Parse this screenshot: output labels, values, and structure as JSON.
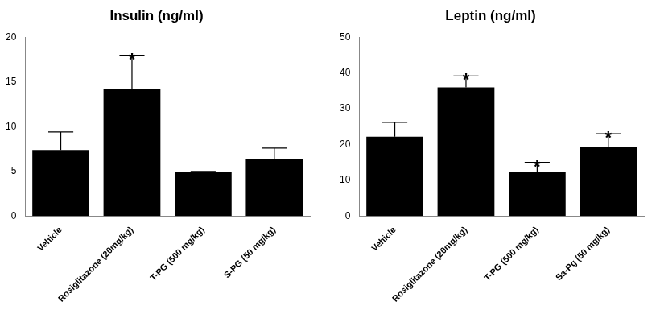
{
  "chart_data": [
    {
      "type": "bar",
      "title": "Insulin (ng/ml)",
      "categories": [
        "Vehicle",
        "Rosiglitazone (20mg/kg)",
        "T-PG (500 mg/kg)",
        "S-PG (50 mg/kg)"
      ],
      "values": [
        7.4,
        14.2,
        4.9,
        6.4
      ],
      "errors": [
        2.0,
        3.8,
        0.1,
        1.2
      ],
      "significance": [
        null,
        "*",
        null,
        null
      ],
      "color": "#000000",
      "ylim": [
        0,
        20
      ],
      "yticks": [
        0,
        5,
        10,
        15,
        20
      ],
      "grid": false
    },
    {
      "type": "bar",
      "title": "Leptin (ng/ml)",
      "categories": [
        "Vehicle",
        "Rosiglitazone (20mg/kg)",
        "T-PG (500 mg/kg)",
        "Sa-Pg (50 mg/kg)"
      ],
      "values": [
        22.2,
        36.0,
        12.3,
        19.3
      ],
      "errors": [
        4.0,
        3.2,
        2.7,
        3.7
      ],
      "significance": [
        null,
        "*",
        "*",
        "*"
      ],
      "color": "#000000",
      "ylim": [
        0,
        50
      ],
      "yticks": [
        0,
        10,
        20,
        30,
        40,
        50
      ],
      "grid": false
    }
  ]
}
